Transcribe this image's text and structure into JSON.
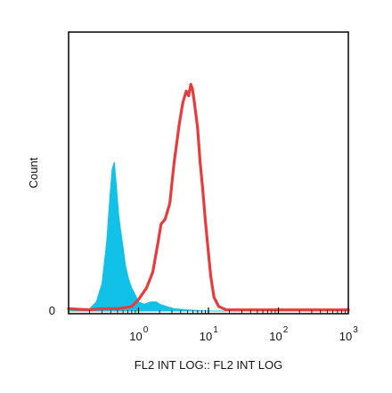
{
  "chart_data": {
    "type": "area",
    "title": "",
    "xlabel": "FL2 INT LOG:: FL2 INT LOG",
    "ylabel": "Count",
    "x_scale": "log",
    "x_range": [
      0.1,
      1000
    ],
    "y_range": [
      0,
      100
    ],
    "x_ticks": [
      {
        "base": "10",
        "exp": "0",
        "value": 1
      },
      {
        "base": "10",
        "exp": "1",
        "value": 10
      },
      {
        "base": "10",
        "exp": "2",
        "value": 100
      },
      {
        "base": "10",
        "exp": "3",
        "value": 1000
      }
    ],
    "y_ticks": [
      {
        "label": "0",
        "value": 0
      }
    ],
    "grid": false,
    "legend": "none",
    "series": [
      {
        "style": "filled",
        "color": "#12c1e8",
        "points": [
          [
            0.1,
            0
          ],
          [
            0.2,
            1
          ],
          [
            0.25,
            4
          ],
          [
            0.3,
            12
          ],
          [
            0.35,
            30
          ],
          [
            0.39,
            50
          ],
          [
            0.42,
            62
          ],
          [
            0.45,
            65
          ],
          [
            0.48,
            55
          ],
          [
            0.52,
            42
          ],
          [
            0.55,
            36
          ],
          [
            0.6,
            28
          ],
          [
            0.65,
            20
          ],
          [
            0.72,
            14
          ],
          [
            0.8,
            10
          ],
          [
            0.9,
            7
          ],
          [
            1.0,
            4
          ],
          [
            1.2,
            3
          ],
          [
            1.5,
            4
          ],
          [
            1.8,
            4
          ],
          [
            2.0,
            3
          ],
          [
            2.5,
            2
          ],
          [
            3.2,
            1
          ],
          [
            5,
            0.5
          ],
          [
            10,
            0
          ],
          [
            1000,
            0
          ]
        ]
      },
      {
        "style": "line",
        "color": "#e83c3c",
        "points": [
          [
            0.1,
            1
          ],
          [
            0.2,
            0.5
          ],
          [
            0.3,
            1
          ],
          [
            0.5,
            1
          ],
          [
            0.8,
            2
          ],
          [
            1.0,
            5
          ],
          [
            1.3,
            10
          ],
          [
            1.6,
            17
          ],
          [
            1.9,
            30
          ],
          [
            2.1,
            38
          ],
          [
            2.4,
            40
          ],
          [
            2.8,
            47
          ],
          [
            3.2,
            64
          ],
          [
            3.8,
            81
          ],
          [
            4.3,
            91
          ],
          [
            4.8,
            96
          ],
          [
            5.2,
            94
          ],
          [
            5.6,
            99
          ],
          [
            5.9,
            97
          ],
          [
            6.3,
            91
          ],
          [
            7.0,
            80
          ],
          [
            7.6,
            65
          ],
          [
            8.3,
            53
          ],
          [
            9.0,
            40
          ],
          [
            9.8,
            28
          ],
          [
            10.8,
            15
          ],
          [
            12,
            6
          ],
          [
            14,
            2
          ],
          [
            18,
            0.5
          ],
          [
            30,
            0.5
          ],
          [
            100,
            0.5
          ],
          [
            1000,
            0.5
          ]
        ]
      }
    ]
  }
}
